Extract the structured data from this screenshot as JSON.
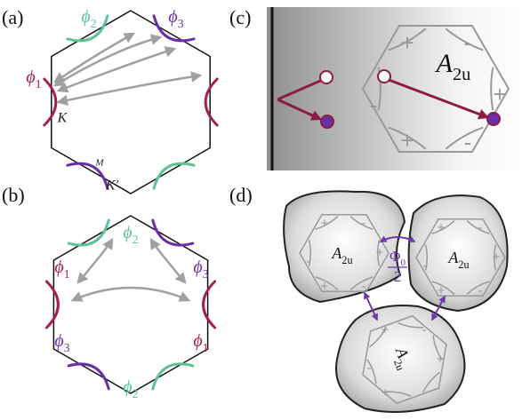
{
  "panel_a": {
    "label": "(a)",
    "phi": [
      {
        "base": "ϕ",
        "sub": "2"
      },
      {
        "base": "ϕ",
        "sub": "3"
      },
      {
        "base": "ϕ",
        "sub": "1"
      }
    ],
    "points": [
      "K",
      "M",
      "K′"
    ]
  },
  "panel_b": {
    "label": "(b)",
    "phi": [
      {
        "base": "ϕ",
        "sub": "2"
      },
      {
        "base": "ϕ",
        "sub": "1"
      },
      {
        "base": "ϕ",
        "sub": "3"
      },
      {
        "base": "ϕ",
        "sub": "3"
      },
      {
        "base": "ϕ",
        "sub": "1"
      },
      {
        "base": "ϕ",
        "sub": "2"
      }
    ]
  },
  "panel_c": {
    "label": "(c)",
    "irrep": {
      "base": "A",
      "sub": "2u"
    },
    "signs": [
      "+",
      "-",
      "-",
      "+",
      "+",
      "-"
    ]
  },
  "panel_d": {
    "label": "(d)",
    "irreps": [
      {
        "base": "A",
        "sub": "2u"
      },
      {
        "base": "A",
        "sub": "2u"
      },
      {
        "base": "A",
        "sub": "2u"
      }
    ],
    "flux": {
      "numerator": "Φ",
      "numerator_sub": "0",
      "denominator": "2"
    },
    "signs": [
      [
        "+",
        "-",
        "-",
        "+",
        "+",
        "-"
      ],
      [
        "+",
        "-",
        "-",
        "+",
        "+",
        "-"
      ],
      [
        "+",
        "-",
        "-",
        "+",
        "+",
        "-"
      ]
    ]
  }
}
